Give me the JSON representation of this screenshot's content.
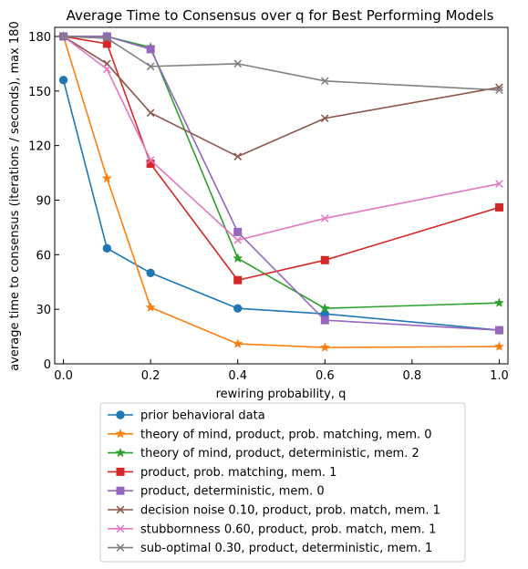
{
  "chart_data": {
    "type": "line",
    "title": "Average Time to Consensus over q for Best Performing Models",
    "xlabel": "rewiring probability, q",
    "ylabel": "average time to consensus (iterations / seconds), max 180",
    "xlim": [
      -0.02,
      1.02
    ],
    "ylim": [
      0,
      185
    ],
    "xticks": [
      0.0,
      0.2,
      0.4,
      0.6,
      0.8,
      1.0
    ],
    "xtick_labels": [
      "0.0",
      "0.2",
      "0.4",
      "0.6",
      "0.8",
      "1.0"
    ],
    "yticks": [
      0,
      30,
      60,
      90,
      120,
      150,
      180
    ],
    "ytick_labels": [
      "0",
      "30",
      "60",
      "90",
      "120",
      "150",
      "180"
    ],
    "grid": false,
    "legend_position": "bottom-outside",
    "series": [
      {
        "name": "prior behavioral data",
        "color": "#1f77b4",
        "marker": "circle",
        "x": [
          0.0,
          0.1,
          0.2,
          0.4,
          0.6,
          1.0
        ],
        "y": [
          156,
          63.5,
          50,
          30.5,
          27.5,
          18.5
        ]
      },
      {
        "name": "theory of mind, product, prob. matching, mem. 0",
        "color": "#ff7f0e",
        "marker": "star",
        "x": [
          0.0,
          0.1,
          0.2,
          0.4,
          0.6,
          1.0
        ],
        "y": [
          180,
          102,
          31,
          11,
          9,
          9.5
        ]
      },
      {
        "name": "theory of mind, product, deterministic, mem. 2",
        "color": "#2ca02c",
        "marker": "star",
        "x": [
          0.0,
          0.1,
          0.2,
          0.4,
          0.6,
          1.0
        ],
        "y": [
          180,
          180,
          174,
          58,
          30.5,
          33.5
        ]
      },
      {
        "name": "product, prob. matching, mem. 1",
        "color": "#d62728",
        "marker": "square",
        "x": [
          0.0,
          0.1,
          0.2,
          0.4,
          0.6,
          1.0
        ],
        "y": [
          180,
          176,
          110,
          46,
          57,
          86
        ]
      },
      {
        "name": "product, deterministic, mem. 0",
        "color": "#9467bd",
        "marker": "square",
        "x": [
          0.0,
          0.1,
          0.2,
          0.4,
          0.6,
          1.0
        ],
        "y": [
          180,
          180,
          173,
          72.5,
          24,
          18.5
        ]
      },
      {
        "name": "decision noise 0.10, product, prob. match, mem. 1",
        "color": "#8c564b",
        "marker": "x",
        "x": [
          0.0,
          0.1,
          0.2,
          0.4,
          0.6,
          1.0
        ],
        "y": [
          180,
          165,
          138,
          114,
          135,
          152
        ]
      },
      {
        "name": "stubbornness 0.60, product, prob. match, mem. 1",
        "color": "#e377c2",
        "marker": "x",
        "x": [
          0.0,
          0.1,
          0.2,
          0.4,
          0.6,
          1.0
        ],
        "y": [
          180,
          162,
          112,
          68,
          80,
          99
        ]
      },
      {
        "name": "sub-optimal 0.30, product, deterministic, mem. 1",
        "color": "#7f7f7f",
        "marker": "x",
        "x": [
          0.0,
          0.1,
          0.2,
          0.4,
          0.6,
          1.0
        ],
        "y": [
          180,
          179,
          163.5,
          165,
          155.5,
          150.5
        ]
      }
    ]
  }
}
